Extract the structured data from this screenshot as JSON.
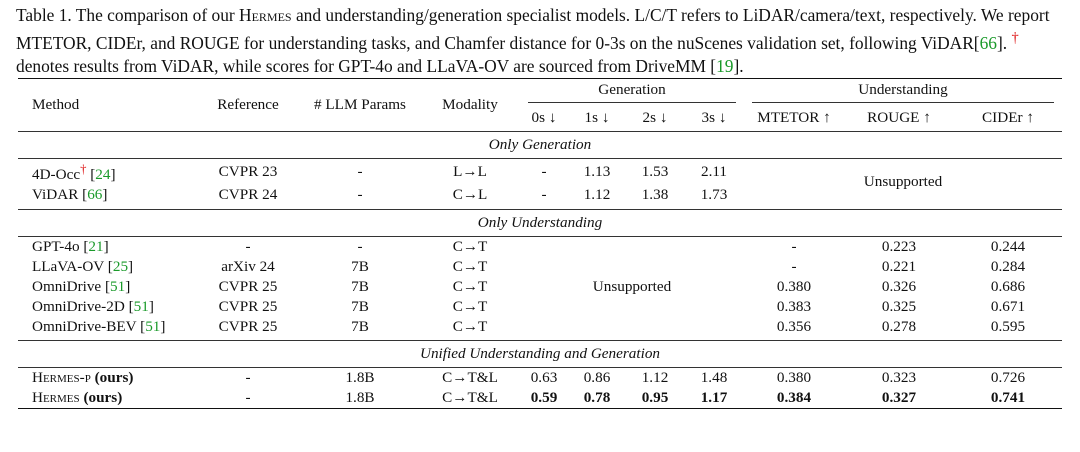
{
  "caption": {
    "p1": "Table 1. The comparison of our ",
    "hermes": "Hermes",
    "p2": " and understanding/generation specialist models. L/C/T refers to LiDAR/camera/text, respectively. We report MTETOR, CIDEr, and ROUGE for understanding tasks, and Chamfer distance for 0-3s on the nuScenes validation set, following ViDAR[",
    "ref66": "66",
    "p3": "]. ",
    "dagger": "†",
    "p4": " denotes results from ViDAR, while scores for GPT-4o and LLaVA-OV are sourced from DriveMM [",
    "ref19": "19",
    "p5": "]."
  },
  "headers": {
    "method": "Method",
    "reference": "Reference",
    "llm_params": "# LLM Params",
    "modality": "Modality",
    "generation": "Generation",
    "understanding": "Understanding",
    "gen_cols": [
      "0s ↓",
      "1s ↓",
      "2s ↓",
      "3s ↓"
    ],
    "und_cols": [
      "MTETOR ↑",
      "ROUGE ↑",
      "CIDEr ↑"
    ]
  },
  "sections": {
    "only_generation": "Only Generation",
    "only_understanding": "Only Understanding",
    "unified": "Unified Understanding and Generation"
  },
  "unsupported": "Unsupported",
  "gen_rows": [
    {
      "method": "4D-Occ",
      "dagger": "†",
      "ref": "24",
      "reference": "CVPR 23",
      "params": "-",
      "modality": "L→L",
      "g": [
        "-",
        "1.13",
        "1.53",
        "2.11"
      ]
    },
    {
      "method": "ViDAR",
      "ref": "66",
      "reference": "CVPR 24",
      "params": "-",
      "modality": "C→L",
      "g": [
        "-",
        "1.12",
        "1.38",
        "1.73"
      ]
    }
  ],
  "und_rows": [
    {
      "method": "GPT-4o",
      "ref": "21",
      "reference": "-",
      "params": "-",
      "modality": "C→T",
      "u": [
        "-",
        "0.223",
        "0.244"
      ]
    },
    {
      "method": "LLaVA-OV",
      "ref": "25",
      "reference": "arXiv 24",
      "params": "7B",
      "modality": "C→T",
      "u": [
        "-",
        "0.221",
        "0.284"
      ]
    },
    {
      "method": "OmniDrive",
      "ref": "51",
      "reference": "CVPR 25",
      "params": "7B",
      "modality": "C→T",
      "u": [
        "0.380",
        "0.326",
        "0.686"
      ]
    },
    {
      "method": "OmniDrive-2D",
      "ref": "51",
      "reference": "CVPR 25",
      "params": "7B",
      "modality": "C→T",
      "u": [
        "0.383",
        "0.325",
        "0.671"
      ]
    },
    {
      "method": "OmniDrive-BEV",
      "ref": "51",
      "reference": "CVPR 25",
      "params": "7B",
      "modality": "C→T",
      "u": [
        "0.356",
        "0.278",
        "0.595"
      ]
    }
  ],
  "unified_rows": [
    {
      "method": "Hermes-p",
      "ours": "(ours)",
      "reference": "-",
      "params": "1.8B",
      "modality": "C→T&L",
      "g": [
        "0.63",
        "0.86",
        "1.12",
        "1.48"
      ],
      "u": [
        "0.380",
        "0.323",
        "0.726"
      ]
    },
    {
      "method": "Hermes",
      "ours": "(ours)",
      "reference": "-",
      "params": "1.8B",
      "modality": "C→T&L",
      "g": [
        "0.59",
        "0.78",
        "0.95",
        "1.17"
      ],
      "u": [
        "0.384",
        "0.327",
        "0.741"
      ]
    }
  ]
}
